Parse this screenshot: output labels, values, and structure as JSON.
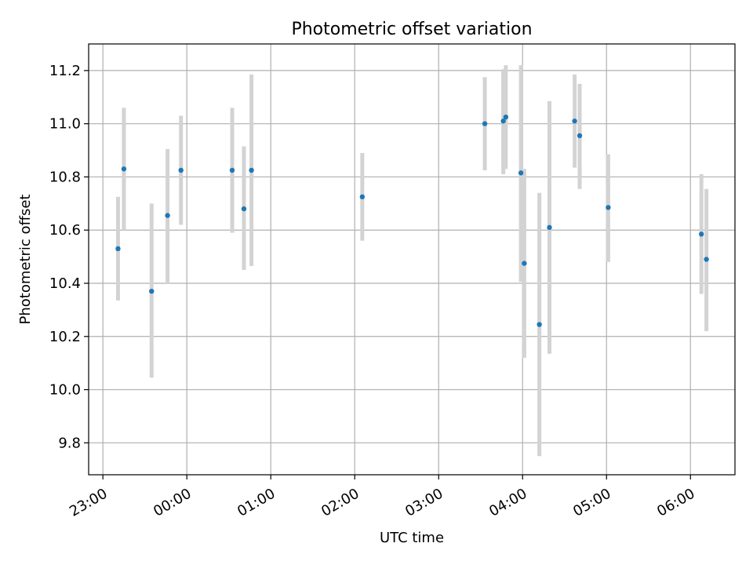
{
  "chart_data": {
    "type": "scatter",
    "title": "Photometric offset variation",
    "xlabel": "UTC time",
    "ylabel": "Photometric offset",
    "x_unit": "hours relative to 00:00 UTC",
    "xlim": [
      -1.17,
      6.53
    ],
    "ylim": [
      9.68,
      11.3
    ],
    "x_ticks": [
      {
        "value": -1,
        "label": "23:00"
      },
      {
        "value": 0,
        "label": "00:00"
      },
      {
        "value": 1,
        "label": "01:00"
      },
      {
        "value": 2,
        "label": "02:00"
      },
      {
        "value": 3,
        "label": "03:00"
      },
      {
        "value": 4,
        "label": "04:00"
      },
      {
        "value": 5,
        "label": "05:00"
      },
      {
        "value": 6,
        "label": "06:00"
      }
    ],
    "y_ticks": [
      {
        "value": 9.8,
        "label": "9.8"
      },
      {
        "value": 10.0,
        "label": "10.0"
      },
      {
        "value": 10.2,
        "label": "10.2"
      },
      {
        "value": 10.4,
        "label": "10.4"
      },
      {
        "value": 10.6,
        "label": "10.6"
      },
      {
        "value": 10.8,
        "label": "10.8"
      },
      {
        "value": 11.0,
        "label": "11.0"
      },
      {
        "value": 11.2,
        "label": "11.2"
      }
    ],
    "grid": true,
    "marker_color": "#1f77b4",
    "errorbar_color": "#d3d3d3",
    "points": [
      {
        "x": -0.82,
        "y": 10.53,
        "err_low": 10.335,
        "err_high": 10.725
      },
      {
        "x": -0.75,
        "y": 10.83,
        "err_low": 10.6,
        "err_high": 11.06
      },
      {
        "x": -0.42,
        "y": 10.37,
        "err_low": 10.045,
        "err_high": 10.7
      },
      {
        "x": -0.23,
        "y": 10.655,
        "err_low": 10.4,
        "err_high": 10.905
      },
      {
        "x": -0.07,
        "y": 10.825,
        "err_low": 10.62,
        "err_high": 11.03
      },
      {
        "x": 0.54,
        "y": 10.825,
        "err_low": 10.59,
        "err_high": 11.06
      },
      {
        "x": 0.68,
        "y": 10.68,
        "err_low": 10.45,
        "err_high": 10.915
      },
      {
        "x": 0.77,
        "y": 10.825,
        "err_low": 10.465,
        "err_high": 11.185
      },
      {
        "x": 2.09,
        "y": 10.725,
        "err_low": 10.56,
        "err_high": 10.89
      },
      {
        "x": 3.55,
        "y": 11.0,
        "err_low": 10.825,
        "err_high": 11.175
      },
      {
        "x": 3.77,
        "y": 11.01,
        "err_low": 10.81,
        "err_high": 11.205
      },
      {
        "x": 3.8,
        "y": 11.025,
        "err_low": 10.83,
        "err_high": 11.22
      },
      {
        "x": 3.98,
        "y": 10.815,
        "err_low": 10.405,
        "err_high": 11.22
      },
      {
        "x": 4.02,
        "y": 10.475,
        "err_low": 10.12,
        "err_high": 10.83
      },
      {
        "x": 4.2,
        "y": 10.245,
        "err_low": 9.75,
        "err_high": 10.74
      },
      {
        "x": 4.32,
        "y": 10.61,
        "err_low": 10.135,
        "err_high": 11.085
      },
      {
        "x": 4.62,
        "y": 11.01,
        "err_low": 10.835,
        "err_high": 11.185
      },
      {
        "x": 4.68,
        "y": 10.955,
        "err_low": 10.755,
        "err_high": 11.15
      },
      {
        "x": 5.02,
        "y": 10.685,
        "err_low": 10.48,
        "err_high": 10.885
      },
      {
        "x": 6.13,
        "y": 10.585,
        "err_low": 10.36,
        "err_high": 10.81
      },
      {
        "x": 6.19,
        "y": 10.49,
        "err_low": 10.22,
        "err_high": 10.755
      }
    ]
  }
}
